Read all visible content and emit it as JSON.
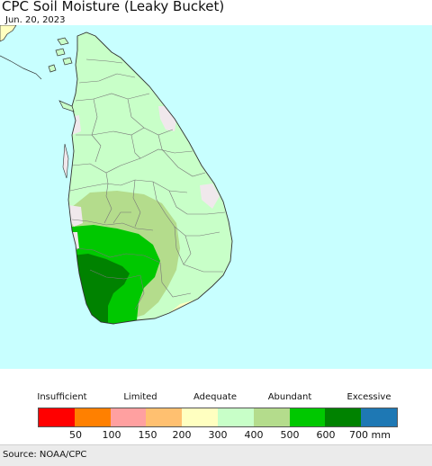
{
  "header": {
    "title": "CPC Soil Moisture (Leaky Bucket)",
    "date": "Jun. 20, 2023"
  },
  "legend": {
    "categories": [
      "Insufficient",
      "Limited",
      "Adequate",
      "Abundant",
      "Excessive"
    ],
    "colors": [
      "#ff0000",
      "#ff8000",
      "#ffa0a0",
      "#ffc070",
      "#ffffc0",
      "#c8ffc8",
      "#b4dc8c",
      "#00c800",
      "#008200",
      "#1e78b4"
    ],
    "ticks": [
      "50",
      "100",
      "150",
      "200",
      "300",
      "400",
      "500",
      "600",
      "700 mm"
    ]
  },
  "map": {
    "ocean_color": "#c8ffff",
    "land_base_color": "#c8ffc8"
  },
  "footer": {
    "source": "Source: NOAA/CPC"
  }
}
